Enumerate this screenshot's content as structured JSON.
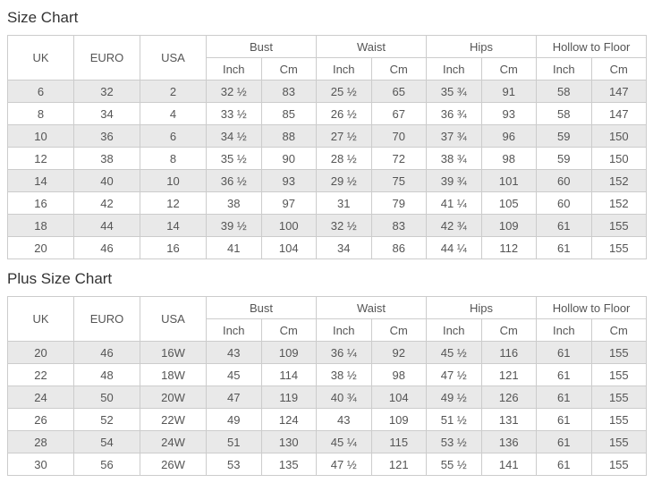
{
  "colors": {
    "row_stripe": "#e9e9e9",
    "table_border": "#cccccc",
    "cell_text": "#555555",
    "title_text": "#333333",
    "background": "#ffffff"
  },
  "size_chart": {
    "title": "Size Chart",
    "headers": {
      "uk": "UK",
      "euro": "EURO",
      "usa": "USA",
      "groups": [
        {
          "label": "Bust",
          "sub": [
            "Inch",
            "Cm"
          ]
        },
        {
          "label": "Waist",
          "sub": [
            "Inch",
            "Cm"
          ]
        },
        {
          "label": "Hips",
          "sub": [
            "Inch",
            "Cm"
          ]
        },
        {
          "label": "Hollow to Floor",
          "sub": [
            "Inch",
            "Cm"
          ]
        }
      ]
    },
    "rows": [
      [
        "6",
        "32",
        "2",
        "32 ½",
        "83",
        "25 ½",
        "65",
        "35 ¾",
        "91",
        "58",
        "147"
      ],
      [
        "8",
        "34",
        "4",
        "33 ½",
        "85",
        "26 ½",
        "67",
        "36 ¾",
        "93",
        "58",
        "147"
      ],
      [
        "10",
        "36",
        "6",
        "34 ½",
        "88",
        "27 ½",
        "70",
        "37 ¾",
        "96",
        "59",
        "150"
      ],
      [
        "12",
        "38",
        "8",
        "35 ½",
        "90",
        "28 ½",
        "72",
        "38 ¾",
        "98",
        "59",
        "150"
      ],
      [
        "14",
        "40",
        "10",
        "36 ½",
        "93",
        "29 ½",
        "75",
        "39 ¾",
        "101",
        "60",
        "152"
      ],
      [
        "16",
        "42",
        "12",
        "38",
        "97",
        "31",
        "79",
        "41 ¼",
        "105",
        "60",
        "152"
      ],
      [
        "18",
        "44",
        "14",
        "39 ½",
        "100",
        "32 ½",
        "83",
        "42 ¾",
        "109",
        "61",
        "155"
      ],
      [
        "20",
        "46",
        "16",
        "41",
        "104",
        "34",
        "86",
        "44 ¼",
        "112",
        "61",
        "155"
      ]
    ]
  },
  "plus_size_chart": {
    "title": "Plus Size Chart",
    "headers": {
      "uk": "UK",
      "euro": "EURO",
      "usa": "USA",
      "groups": [
        {
          "label": "Bust",
          "sub": [
            "Inch",
            "Cm"
          ]
        },
        {
          "label": "Waist",
          "sub": [
            "Inch",
            "Cm"
          ]
        },
        {
          "label": "Hips",
          "sub": [
            "Inch",
            "Cm"
          ]
        },
        {
          "label": "Hollow to Floor",
          "sub": [
            "Inch",
            "Cm"
          ]
        }
      ]
    },
    "rows": [
      [
        "20",
        "46",
        "16W",
        "43",
        "109",
        "36 ¼",
        "92",
        "45 ½",
        "116",
        "61",
        "155"
      ],
      [
        "22",
        "48",
        "18W",
        "45",
        "114",
        "38 ½",
        "98",
        "47 ½",
        "121",
        "61",
        "155"
      ],
      [
        "24",
        "50",
        "20W",
        "47",
        "119",
        "40 ¾",
        "104",
        "49 ½",
        "126",
        "61",
        "155"
      ],
      [
        "26",
        "52",
        "22W",
        "49",
        "124",
        "43",
        "109",
        "51 ½",
        "131",
        "61",
        "155"
      ],
      [
        "28",
        "54",
        "24W",
        "51",
        "130",
        "45 ¼",
        "115",
        "53 ½",
        "136",
        "61",
        "155"
      ],
      [
        "30",
        "56",
        "26W",
        "53",
        "135",
        "47 ½",
        "121",
        "55 ½",
        "141",
        "61",
        "155"
      ]
    ]
  }
}
